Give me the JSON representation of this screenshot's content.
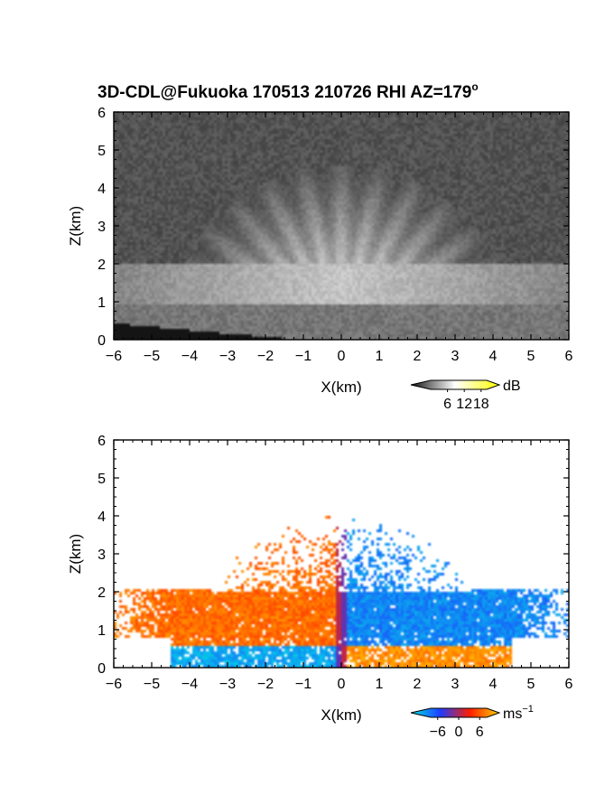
{
  "title": "3D-CDL@Fukuoka 170513 210726 RHI AZ=179",
  "title_sup": "o",
  "chart_data": [
    {
      "type": "heatmap",
      "name": "backscatter-intensity",
      "xlabel": "X(km)",
      "ylabel": "Z(km)",
      "xlim": [
        -6,
        6
      ],
      "ylim": [
        0,
        6
      ],
      "x_ticks": [
        "-6",
        "-5",
        "-4",
        "-3",
        "-2",
        "-1",
        "0",
        "1",
        "2",
        "3",
        "4",
        "5",
        "6"
      ],
      "y_ticks": [
        "0",
        "1",
        "2",
        "3",
        "4",
        "5",
        "6"
      ],
      "colorbar": {
        "unit": "dB",
        "ticks": [
          "6",
          "12",
          "18"
        ],
        "range": [
          0,
          20
        ],
        "colors": [
          "#111111",
          "#ffffff",
          "#ffff00"
        ]
      },
      "features": {
        "background_db": 4,
        "dense_layer_km": [
          0.9,
          2.0
        ],
        "dense_layer_db": 14,
        "plume_top_km": 4.2,
        "saturated_region_color": "#ffff00"
      }
    },
    {
      "type": "heatmap",
      "name": "radial-velocity",
      "xlabel": "X(km)",
      "ylabel": "Z(km)",
      "xlim": [
        -6,
        6
      ],
      "ylim": [
        0,
        6
      ],
      "x_ticks": [
        "-6",
        "-5",
        "-4",
        "-3",
        "-2",
        "-1",
        "0",
        "1",
        "2",
        "3",
        "4",
        "5",
        "6"
      ],
      "y_ticks": [
        "0",
        "1",
        "2",
        "3",
        "4",
        "5",
        "6"
      ],
      "colorbar": {
        "unit": "ms",
        "unit_sup": "−1",
        "ticks": [
          "−6",
          "0",
          "6"
        ],
        "range": [
          -8,
          8
        ],
        "colors": [
          "#00e5e5",
          "#1e3cff",
          "#ff1e00",
          "#ffd000"
        ]
      },
      "features": {
        "left_of_radar_ms": 5,
        "right_of_radar_ms": -5,
        "near_surface_left_ms": -6,
        "near_surface_right_ms": 6,
        "layer_km": [
          0.9,
          2.0
        ]
      }
    }
  ]
}
